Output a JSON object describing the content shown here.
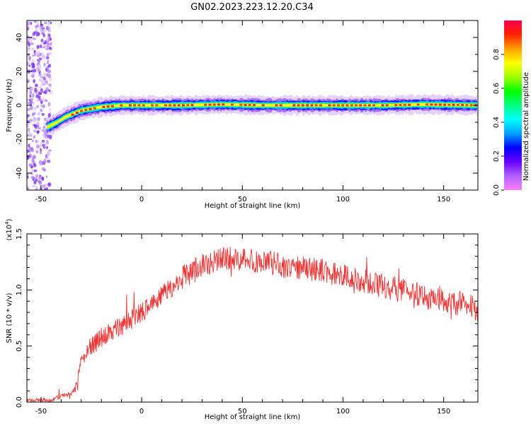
{
  "figure": {
    "title": "GN02.2023.223.12.20.C34"
  },
  "chart_data": [
    {
      "type": "heatmap",
      "xlabel": "Height of straight line (km)",
      "ylabel": "Frequency (Hz)",
      "xlim": [
        -57,
        167
      ],
      "ylim": [
        -50,
        50
      ],
      "xticks": [
        -50,
        0,
        50,
        100,
        150
      ],
      "yticks": [
        -40,
        -20,
        0,
        20,
        40
      ],
      "grid": false,
      "colorbar": {
        "label": "Normalized spectral amplitude",
        "range": [
          0,
          1
        ],
        "ticks": [
          "0.0",
          "0.2",
          "0.4",
          "0.6",
          "0.8"
        ],
        "colors": [
          "#ff80ff",
          "#b060ff",
          "#6a00ff",
          "#0000ff",
          "#00a0ff",
          "#00ffff",
          "#00ff80",
          "#00ff00",
          "#a0ff00",
          "#ffff00",
          "#ffa000",
          "#ff2000",
          "#ff0050"
        ]
      },
      "ridge": {
        "x": [
          -55,
          -47,
          -42,
          -38,
          -34,
          -30,
          -25,
          -20,
          -15,
          -10,
          -5,
          0,
          20,
          40,
          60,
          80,
          100,
          120,
          140,
          167
        ],
        "y": [
          -14,
          -13,
          -10,
          -7,
          -5,
          -3,
          -2,
          -1,
          -0.5,
          0,
          0,
          0,
          0,
          0.5,
          0,
          0,
          0,
          0,
          0.5,
          0
        ]
      },
      "noise_band_x": [
        -57,
        -45
      ]
    },
    {
      "type": "line",
      "xlabel": "Height of straight line (km)",
      "ylabel": "SNR (10 * v/v)",
      "yscale_label": "(x10",
      "yscale_exp": "4",
      "xlim": [
        -57,
        167
      ],
      "ylim": [
        0,
        1.5
      ],
      "xticks": [
        -50,
        0,
        50,
        100,
        150
      ],
      "yticks": [
        "0.0",
        "0.5",
        "1.0",
        "1.5"
      ],
      "grid": false,
      "series": [
        {
          "color": "#ee3333",
          "x": [
            -57,
            -45,
            -40,
            -35,
            -32,
            -30,
            -25,
            -20,
            -10,
            0,
            10,
            20,
            30,
            40,
            50,
            60,
            70,
            80,
            90,
            100,
            110,
            120,
            130,
            140,
            150,
            160,
            167
          ],
          "y": [
            0.01,
            0.02,
            0.05,
            0.08,
            0.15,
            0.4,
            0.5,
            0.58,
            0.68,
            0.8,
            0.95,
            1.1,
            1.22,
            1.28,
            1.28,
            1.25,
            1.22,
            1.2,
            1.17,
            1.12,
            1.08,
            1.03,
            1.0,
            0.95,
            0.9,
            0.87,
            0.83
          ]
        }
      ]
    }
  ]
}
